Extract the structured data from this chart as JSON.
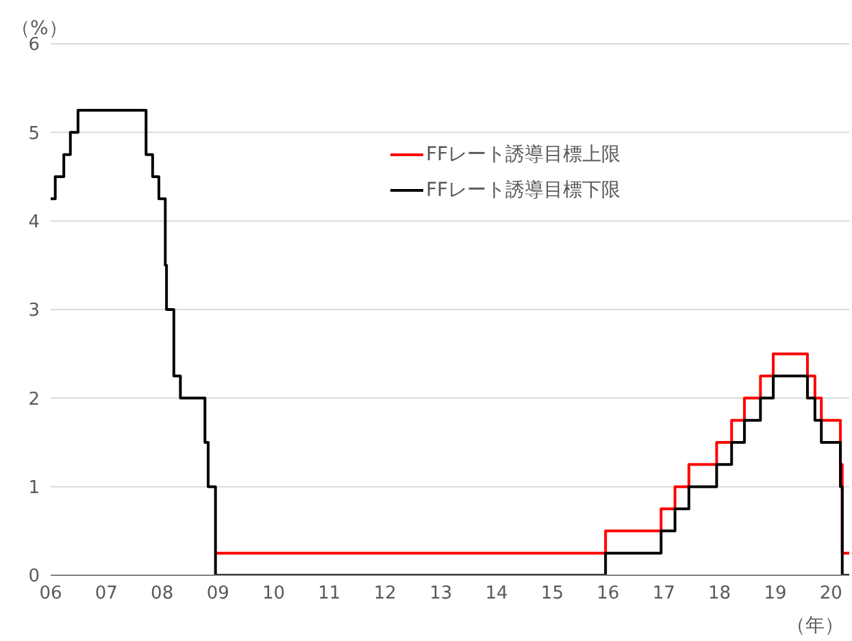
{
  "chart_data": {
    "type": "step",
    "ylabel": "（%）",
    "xlabel": "（年）",
    "x": [
      "2006-01-01",
      "2006-01-31",
      "2006-03-28",
      "2006-05-10",
      "2006-06-29",
      "2007-09-18",
      "2007-10-31",
      "2007-12-11",
      "2008-01-22",
      "2008-01-30",
      "2008-03-18",
      "2008-04-30",
      "2008-10-08",
      "2008-10-29",
      "2008-12-16",
      "2015-12-16",
      "2016-12-14",
      "2017-03-15",
      "2017-06-14",
      "2017-12-13",
      "2018-03-21",
      "2018-06-13",
      "2018-09-26",
      "2018-12-19",
      "2019-07-31",
      "2019-09-18",
      "2019-10-30",
      "2020-03-03",
      "2020-03-15",
      "2020-04-30"
    ],
    "series": [
      {
        "name": "FFレート誘導目標上限",
        "color": "#ff0000",
        "values": [
          null,
          null,
          null,
          null,
          null,
          null,
          null,
          null,
          null,
          null,
          null,
          null,
          null,
          null,
          0.25,
          0.5,
          0.75,
          1,
          1.25,
          1.5,
          1.75,
          2,
          2.25,
          2.5,
          2.25,
          2,
          1.75,
          1.25,
          0.25,
          0.25
        ]
      },
      {
        "name": "FFレート誘導目標下限",
        "color": "#000000",
        "values": [
          4.25,
          4.5,
          4.75,
          5,
          5.25,
          4.75,
          4.5,
          4.25,
          3.5,
          3,
          2.25,
          2,
          1.5,
          1,
          0,
          0.25,
          0.5,
          0.75,
          1,
          1.25,
          1.5,
          1.75,
          2,
          2.25,
          2,
          1.75,
          1.5,
          1,
          0,
          0
        ]
      }
    ],
    "xlim": [
      "2006-01-01",
      "2020-04-30"
    ],
    "xticks": [
      {
        "value": "2006-01-01",
        "label": "06"
      },
      {
        "value": "2007-01-01",
        "label": "07"
      },
      {
        "value": "2008-01-01",
        "label": "08"
      },
      {
        "value": "2009-01-01",
        "label": "09"
      },
      {
        "value": "2010-01-01",
        "label": "10"
      },
      {
        "value": "2011-01-01",
        "label": "11"
      },
      {
        "value": "2012-01-01",
        "label": "12"
      },
      {
        "value": "2013-01-01",
        "label": "13"
      },
      {
        "value": "2014-01-01",
        "label": "14"
      },
      {
        "value": "2015-01-01",
        "label": "15"
      },
      {
        "value": "2016-01-01",
        "label": "16"
      },
      {
        "value": "2017-01-01",
        "label": "17"
      },
      {
        "value": "2018-01-01",
        "label": "18"
      },
      {
        "value": "2019-01-01",
        "label": "19"
      },
      {
        "value": "2020-01-01",
        "label": "20"
      }
    ],
    "ylim": [
      0,
      6
    ],
    "yticks": [
      0,
      1,
      2,
      3,
      4,
      5,
      6
    ],
    "grid": "y",
    "legend": "top"
  }
}
